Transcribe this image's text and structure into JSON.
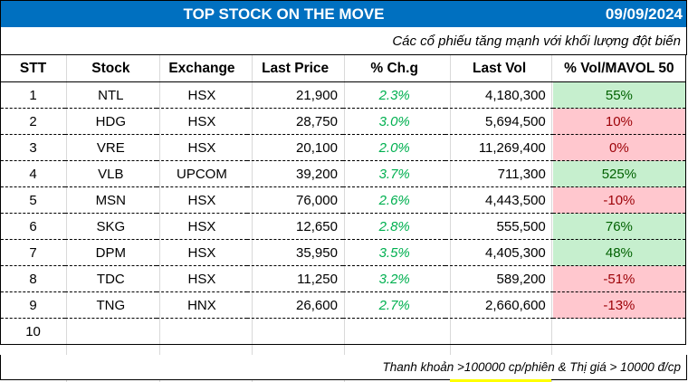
{
  "header": {
    "title": "TOP STOCK ON THE MOVE",
    "date": "09/09/2024",
    "subtitle": "Các cổ phiếu tăng mạnh với khối lượng đột biến"
  },
  "columns": [
    "STT",
    "Stock",
    "Exchange",
    "Last Price",
    "% Ch.g",
    "Last Vol",
    "% Vol/MAVOL 50"
  ],
  "rows": [
    {
      "stt": "1",
      "stock": "NTL",
      "exchange": "HSX",
      "last_price": "21,900",
      "change": "2.3%",
      "last_vol": "4,180,300",
      "vol_mavol": "55%",
      "vol_status": "positive"
    },
    {
      "stt": "2",
      "stock": "HDG",
      "exchange": "HSX",
      "last_price": "28,750",
      "change": "3.0%",
      "last_vol": "5,694,500",
      "vol_mavol": "10%",
      "vol_status": "negative"
    },
    {
      "stt": "3",
      "stock": "VRE",
      "exchange": "HSX",
      "last_price": "20,100",
      "change": "2.0%",
      "last_vol": "11,269,400",
      "vol_mavol": "0%",
      "vol_status": "negative"
    },
    {
      "stt": "4",
      "stock": "VLB",
      "exchange": "UPCOM",
      "last_price": "39,200",
      "change": "3.7%",
      "last_vol": "711,300",
      "vol_mavol": "525%",
      "vol_status": "positive"
    },
    {
      "stt": "5",
      "stock": "MSN",
      "exchange": "HSX",
      "last_price": "76,000",
      "change": "2.6%",
      "last_vol": "4,443,500",
      "vol_mavol": "-10%",
      "vol_status": "negative"
    },
    {
      "stt": "6",
      "stock": "SKG",
      "exchange": "HSX",
      "last_price": "12,650",
      "change": "2.8%",
      "last_vol": "555,500",
      "vol_mavol": "76%",
      "vol_status": "positive"
    },
    {
      "stt": "7",
      "stock": "DPM",
      "exchange": "HSX",
      "last_price": "35,950",
      "change": "3.5%",
      "last_vol": "4,405,300",
      "vol_mavol": "48%",
      "vol_status": "positive"
    },
    {
      "stt": "8",
      "stock": "TDC",
      "exchange": "HSX",
      "last_price": "11,250",
      "change": "3.2%",
      "last_vol": "589,200",
      "vol_mavol": "-51%",
      "vol_status": "negative"
    },
    {
      "stt": "9",
      "stock": "TNG",
      "exchange": "HNX",
      "last_price": "26,600",
      "change": "2.7%",
      "last_vol": "2,660,600",
      "vol_mavol": "-13%",
      "vol_status": "negative"
    },
    {
      "stt": "10",
      "stock": "",
      "exchange": "",
      "last_price": "",
      "change": "",
      "last_vol": "",
      "vol_mavol": "",
      "vol_status": "none"
    }
  ],
  "footer": {
    "note": "Thanh khoản >100000 cp/phiên & Thị giá > 10000 đ/cp"
  },
  "colors": {
    "title_bg": "#0070c0",
    "change_text": "#00b050",
    "positive_bg": "#c6efce",
    "positive_text": "#006100",
    "negative_bg": "#ffc7ce",
    "negative_text": "#9c0006"
  }
}
